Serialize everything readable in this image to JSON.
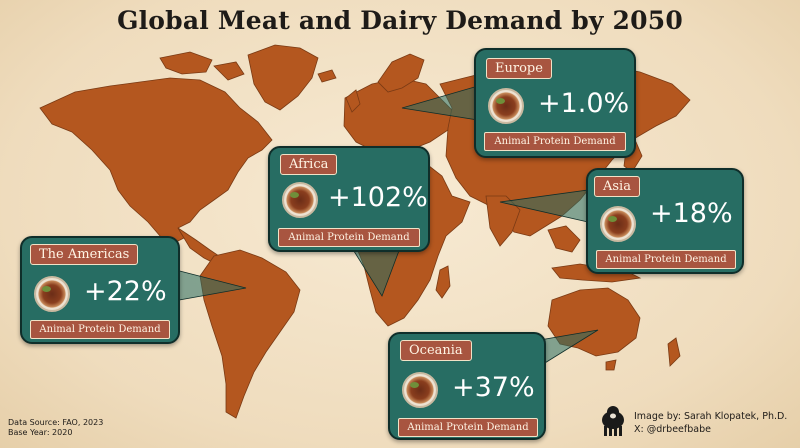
{
  "title": "Global Meat and Dairy Demand by 2050",
  "regions": [
    {
      "id": "europe",
      "name": "Europe",
      "change": "+1.0%",
      "caption": "Animal Protein Demand"
    },
    {
      "id": "africa",
      "name": "Africa",
      "change": "+102%",
      "caption": "Animal Protein Demand"
    },
    {
      "id": "asia",
      "name": "Asia",
      "change": "+18%",
      "caption": "Animal Protein Demand"
    },
    {
      "id": "americas",
      "name": "The Americas",
      "change": "+22%",
      "caption": "Animal Protein Demand"
    },
    {
      "id": "oceania",
      "name": "Oceania",
      "change": "+37%",
      "caption": "Animal Protein Demand"
    }
  ],
  "footer": {
    "source": "Data Source: FAO, 2023",
    "base_year": "Base Year: 2020"
  },
  "credit": {
    "author": "Image by: Sarah Klopatek, Ph.D.",
    "handle": "X: @drbeefbabe"
  },
  "icons": {
    "plate": "plate-of-meat-icon",
    "cow": "cow-icon"
  },
  "colors": {
    "land": "#b4571f",
    "ocean_background": "#f3e3c8",
    "card": "#276d63",
    "label": "#a85540"
  }
}
